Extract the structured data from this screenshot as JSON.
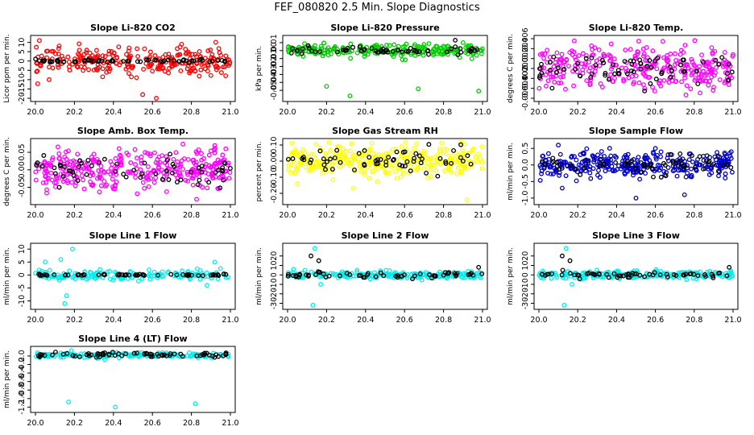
{
  "page": {
    "title": "FEF_080820  2.5 Min. Slope Diagnostics"
  },
  "chart_data": [
    {
      "type": "scatter",
      "title": "Slope Li-820 CO2",
      "xlabel": "",
      "ylabel": "Licor ppm per min.",
      "xlim": [
        20.0,
        21.0
      ],
      "ylim": [
        -20,
        12
      ],
      "xticks": [
        "20.0",
        "20.2",
        "20.4",
        "20.6",
        "20.8",
        "21.0"
      ],
      "yticks": [
        {
          "v": -20,
          "label": "-20"
        },
        {
          "v": -15,
          "label": "-15"
        },
        {
          "v": -10,
          "label": "-10"
        },
        {
          "v": -5,
          "label": "-5"
        },
        {
          "v": 0,
          "label": "0"
        },
        {
          "v": 5,
          "label": "5"
        },
        {
          "v": 10,
          "label": "10"
        }
      ],
      "series": [
        {
          "color": "#ff0000",
          "n": 260,
          "center": 0,
          "spread": 3.5,
          "outliers": [
            [
              20.02,
              11
            ],
            [
              20.55,
              -18
            ],
            [
              20.62,
              -20
            ],
            [
              20.75,
              9
            ],
            [
              20.48,
              7
            ],
            [
              20.07,
              -10
            ]
          ]
        },
        {
          "color": "#000000",
          "n": 60,
          "center": 0,
          "spread": 0.4,
          "outliers": []
        }
      ]
    },
    {
      "type": "scatter",
      "title": "Slope Li-820 Pressure",
      "xlabel": "",
      "ylabel": "kPa per min.",
      "xlim": [
        20.0,
        21.0
      ],
      "ylim": [
        -0.06,
        0.015
      ],
      "xticks": [
        "20.0",
        "20.2",
        "20.4",
        "20.6",
        "20.8",
        "21.0"
      ],
      "yticks": [
        {
          "v": -0.05,
          "label": "-0.05"
        },
        {
          "v": -0.04,
          "label": "-0.04"
        },
        {
          "v": -0.03,
          "label": "-0.03"
        },
        {
          "v": -0.02,
          "label": "-0.02"
        },
        {
          "v": -0.01,
          "label": "-0.01"
        },
        {
          "v": 0,
          "label": "0.00"
        },
        {
          "v": 0.01,
          "label": "0.01"
        }
      ],
      "series": [
        {
          "color": "#00cc00",
          "n": 230,
          "center": 0,
          "spread": 0.004,
          "outliers": [
            [
              20.32,
              -0.057
            ],
            [
              20.67,
              -0.048
            ],
            [
              20.98,
              -0.051
            ],
            [
              20.2,
              -0.045
            ],
            [
              20.9,
              0.01
            ]
          ]
        },
        {
          "color": "#000000",
          "n": 60,
          "center": 0,
          "spread": 0.002,
          "outliers": [
            [
              20.86,
              0.013
            ]
          ]
        }
      ]
    },
    {
      "type": "scatter",
      "title": "Slope Li-820 Temp.",
      "xlabel": "",
      "ylabel": "degrees C per min.",
      "xlim": [
        20.0,
        21.0
      ],
      "ylim": [
        -0.006,
        0.006
      ],
      "xticks": [
        "20.0",
        "20.2",
        "20.4",
        "20.6",
        "20.8",
        "21.0"
      ],
      "yticks": [
        {
          "v": -0.006,
          "label": "-0.006"
        },
        {
          "v": -0.004,
          "label": "-0.004"
        },
        {
          "v": -0.002,
          "label": "-0.002"
        },
        {
          "v": 0,
          "label": "0.000"
        },
        {
          "v": 0.002,
          "label": "0.002"
        },
        {
          "v": 0.004,
          "label": "0.004"
        },
        {
          "v": 0.006,
          "label": "0.006"
        }
      ],
      "series": [
        {
          "color": "#ff00ff",
          "n": 320,
          "center": 0,
          "spread": 0.0022,
          "outliers": []
        },
        {
          "color": "#000000",
          "n": 70,
          "center": 0,
          "spread": 0.0016,
          "outliers": []
        }
      ]
    },
    {
      "type": "scatter",
      "title": "Slope Amb. Box Temp.",
      "xlabel": "",
      "ylabel": "degrees C per min.",
      "xlim": [
        20.0,
        21.0
      ],
      "ylim": [
        -0.09,
        0.08
      ],
      "xticks": [
        "20.0",
        "20.2",
        "20.4",
        "20.6",
        "20.8",
        "21.0"
      ],
      "yticks": [
        {
          "v": -0.05,
          "label": "-0.05"
        },
        {
          "v": 0,
          "label": "0.00"
        },
        {
          "v": 0.05,
          "label": "0.05"
        }
      ],
      "series": [
        {
          "color": "#ff00ff",
          "n": 330,
          "center": 0,
          "spread": 0.028,
          "outliers": []
        },
        {
          "color": "#000000",
          "n": 60,
          "center": 0,
          "spread": 0.025,
          "outliers": []
        }
      ]
    },
    {
      "type": "scatter",
      "title": "Slope Gas Stream RH",
      "xlabel": "",
      "ylabel": "percent per min.",
      "xlim": [
        20.0,
        21.0
      ],
      "ylim": [
        -0.25,
        0.12
      ],
      "xticks": [
        "20.0",
        "20.2",
        "20.4",
        "20.6",
        "20.8",
        "21.0"
      ],
      "yticks": [
        {
          "v": -0.2,
          "label": "-0.20"
        },
        {
          "v": -0.1,
          "label": "-0.10"
        },
        {
          "v": 0,
          "label": "0.00"
        },
        {
          "v": 0.1,
          "label": "0.10"
        }
      ],
      "series": [
        {
          "color": "#ffff00",
          "n": 330,
          "center": 0,
          "spread": 0.045,
          "outliers": [
            [
              20.92,
              -0.24
            ],
            [
              20.05,
              -0.14
            ]
          ]
        },
        {
          "color": "#000000",
          "n": 60,
          "center": 0,
          "spread": 0.035,
          "outliers": []
        }
      ]
    },
    {
      "type": "scatter",
      "title": "Slope Sample Flow",
      "xlabel": "",
      "ylabel": "ml/min per min.",
      "xlim": [
        20.0,
        21.0
      ],
      "ylim": [
        -1.1,
        0.7
      ],
      "xticks": [
        "20.0",
        "20.2",
        "20.4",
        "20.6",
        "20.8",
        "21.0"
      ],
      "yticks": [
        {
          "v": -1,
          "label": "-1.0"
        },
        {
          "v": -0.5,
          "label": "-0.5"
        },
        {
          "v": 0,
          "label": "0.0"
        },
        {
          "v": 0.5,
          "label": "0.5"
        }
      ],
      "series": [
        {
          "color": "#0000cc",
          "n": 330,
          "center": 0,
          "spread": 0.18,
          "outliers": [
            [
              20.5,
              -1.0
            ],
            [
              20.75,
              -0.9
            ],
            [
              20.12,
              -0.7
            ],
            [
              20.1,
              0.6
            ],
            [
              20.6,
              0.5
            ]
          ]
        },
        {
          "color": "#000000",
          "n": 60,
          "center": 0,
          "spread": 0.15,
          "outliers": []
        }
      ]
    },
    {
      "type": "scatter",
      "title": "Slope Line 1 Flow",
      "xlabel": "",
      "ylabel": "ml/min per min.",
      "xlim": [
        20.0,
        21.0
      ],
      "ylim": [
        -12,
        11
      ],
      "xticks": [
        "20.0",
        "20.2",
        "20.4",
        "20.6",
        "20.8",
        "21.0"
      ],
      "yticks": [
        {
          "v": -10,
          "label": "-10"
        },
        {
          "v": -5,
          "label": "-5"
        },
        {
          "v": 0,
          "label": "0"
        },
        {
          "v": 5,
          "label": "5"
        },
        {
          "v": 10,
          "label": "10"
        }
      ],
      "series": [
        {
          "color": "#00eeee",
          "n": 160,
          "center": 0,
          "spread": 1.0,
          "outliers": [
            [
              20.15,
              -11
            ],
            [
              20.19,
              10
            ],
            [
              20.16,
              -8
            ],
            [
              20.05,
              5
            ],
            [
              20.92,
              5
            ],
            [
              20.88,
              -4
            ],
            [
              20.13,
              6
            ]
          ]
        },
        {
          "color": "#000000",
          "n": 60,
          "center": 0,
          "spread": 0.15,
          "outliers": []
        }
      ]
    },
    {
      "type": "scatter",
      "title": "Slope Line 2 Flow",
      "xlabel": "",
      "ylabel": "ml/min per min.",
      "xlim": [
        20.0,
        21.0
      ],
      "ylim": [
        -33,
        30
      ],
      "xticks": [
        "20.0",
        "20.2",
        "20.4",
        "20.6",
        "20.8",
        "21.0"
      ],
      "yticks": [
        {
          "v": -30,
          "label": "-30"
        },
        {
          "v": -20,
          "label": "-20"
        },
        {
          "v": -10,
          "label": "-10"
        },
        {
          "v": 0,
          "label": "0"
        },
        {
          "v": 10,
          "label": "10"
        },
        {
          "v": 20,
          "label": "20"
        }
      ],
      "series": [
        {
          "color": "#00eeee",
          "n": 220,
          "center": 0,
          "spread": 2.0,
          "outliers": [
            [
              20.14,
              28
            ],
            [
              20.13,
              -32
            ],
            [
              20.17,
              -10
            ]
          ]
        },
        {
          "color": "#000000",
          "n": 60,
          "center": 0,
          "spread": 1.5,
          "outliers": [
            [
              20.16,
              15
            ],
            [
              20.12,
              20
            ],
            [
              20.98,
              8
            ]
          ]
        }
      ]
    },
    {
      "type": "scatter",
      "title": "Slope Line 3 Flow",
      "xlabel": "",
      "ylabel": "ml/min per min.",
      "xlim": [
        20.0,
        21.0
      ],
      "ylim": [
        -33,
        30
      ],
      "xticks": [
        "20.0",
        "20.2",
        "20.4",
        "20.6",
        "20.8",
        "21.0"
      ],
      "yticks": [
        {
          "v": -30,
          "label": "-30"
        },
        {
          "v": -20,
          "label": "-20"
        },
        {
          "v": -10,
          "label": "-10"
        },
        {
          "v": 0,
          "label": "0"
        },
        {
          "v": 10,
          "label": "10"
        },
        {
          "v": 20,
          "label": "20"
        }
      ],
      "series": [
        {
          "color": "#00eeee",
          "n": 220,
          "center": 0,
          "spread": 2.0,
          "outliers": [
            [
              20.14,
              28
            ],
            [
              20.13,
              -32
            ],
            [
              20.17,
              -10
            ]
          ]
        },
        {
          "color": "#000000",
          "n": 60,
          "center": 0,
          "spread": 1.5,
          "outliers": [
            [
              20.16,
              15
            ],
            [
              20.12,
              20
            ],
            [
              20.98,
              8
            ]
          ]
        }
      ]
    },
    {
      "type": "scatter",
      "title": "Slope Line 4 (LT) Flow",
      "xlabel": "",
      "ylabel": "ml/min per min.",
      "xlim": [
        20.0,
        21.0
      ],
      "ylim": [
        -1.25,
        0.15
      ],
      "xticks": [
        "20.0",
        "20.2",
        "20.4",
        "20.6",
        "20.8",
        "21.0"
      ],
      "yticks": [
        {
          "v": -1.2,
          "label": "-1.2"
        },
        {
          "v": -1.0,
          "label": "-1.0"
        },
        {
          "v": -0.8,
          "label": "-0.8"
        },
        {
          "v": -0.6,
          "label": "-0.6"
        },
        {
          "v": -0.4,
          "label": "-0.4"
        },
        {
          "v": -0.2,
          "label": "-0.2"
        },
        {
          "v": 0,
          "label": "0.0"
        }
      ],
      "series": [
        {
          "color": "#00eeee",
          "n": 180,
          "center": 0.02,
          "spread": 0.03,
          "outliers": [
            [
              20.17,
              -1.08
            ],
            [
              20.41,
              -1.2
            ],
            [
              20.82,
              -1.12
            ]
          ]
        },
        {
          "color": "#000000",
          "n": 70,
          "center": 0.02,
          "spread": 0.03,
          "outliers": []
        }
      ]
    }
  ]
}
